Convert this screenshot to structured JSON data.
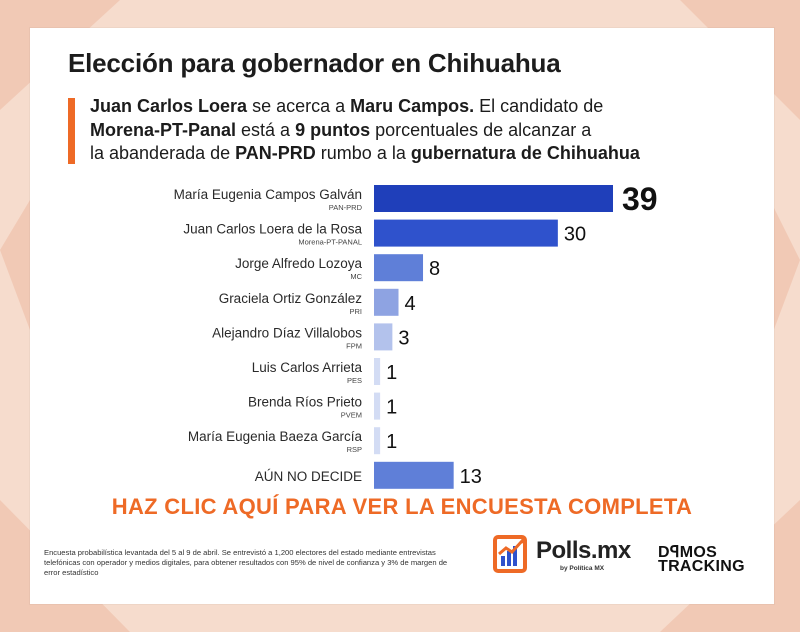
{
  "title": "Elección para gobernador en Chihuahua",
  "lead": {
    "line1": [
      {
        "t": "Juan Carlos Loera",
        "b": true
      },
      {
        "t": " se acerca a ",
        "b": false
      },
      {
        "t": "Maru Campos.",
        "b": true
      },
      {
        "t": " El candidato de",
        "b": false
      }
    ],
    "line2": [
      {
        "t": "Morena-PT-Panal",
        "b": true
      },
      {
        "t": " está a ",
        "b": false
      },
      {
        "t": "9 puntos",
        "b": true
      },
      {
        "t": " porcentuales de alcanzar a",
        "b": false
      }
    ],
    "line3": [
      {
        "t": "la abanderada de ",
        "b": false
      },
      {
        "t": "PAN-PRD",
        "b": true
      },
      {
        "t": " rumbo a la ",
        "b": false
      },
      {
        "t": "gubernatura de Chihuahua",
        "b": true
      }
    ]
  },
  "chart_data": {
    "type": "bar",
    "orientation": "horizontal",
    "categories": [
      "María Eugenia Campos Galván",
      "Juan Carlos Loera de la Rosa",
      "Jorge Alfredo Lozoya",
      "Graciela Ortiz González",
      "Alejandro Díaz Villalobos",
      "Luis Carlos Arrieta",
      "Brenda Ríos Prieto",
      "María Eugenia Baeza García",
      "AÚN NO DECIDE"
    ],
    "parties": [
      "PAN-PRD",
      "Morena-PT-PANAL",
      "MC",
      "PRI",
      "FPM",
      "PES",
      "PVEM",
      "RSP",
      ""
    ],
    "values": [
      39,
      30,
      8,
      4,
      3,
      1,
      1,
      1,
      13
    ],
    "bar_colors": [
      "#1f3fba",
      "#2f52cc",
      "#5f7fd8",
      "#8ea3e2",
      "#b3c2ec",
      "#d3dcf4",
      "#d3dcf4",
      "#d3dcf4",
      "#5f7fd8"
    ],
    "xlim": [
      0,
      39
    ]
  },
  "cta": "HAZ CLIC AQUÍ PARA VER LA ENCUESTA COMPLETA",
  "methodology": "Encuesta probabilística levantada del 5 al 9 de abril. Se entrevistó a 1,200 electores del estado mediante entrevistas telefónicas con operador y medios digitales, para obtener resultados con 95% de nivel de confianza y 3% de margen de error estadístico",
  "logos": {
    "polls_word": "Polls.mx",
    "polls_sub": "by Política MX",
    "demos_line1": "DꟼMOS",
    "demos_line2": "TRACKING"
  },
  "colors": {
    "accent": "#ee6a26",
    "text": "#1c1c1c",
    "background": "#f6dccd"
  }
}
